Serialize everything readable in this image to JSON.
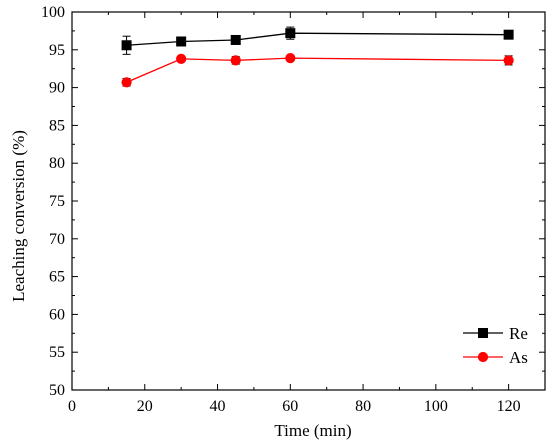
{
  "chart_data": {
    "type": "line",
    "title": "",
    "xlabel": "Time (min)",
    "ylabel": "Leaching conversion (%)",
    "xlim": [
      0,
      130
    ],
    "ylim": [
      50,
      100
    ],
    "xticks": [
      0,
      20,
      40,
      60,
      80,
      100,
      120
    ],
    "yticks": [
      50,
      55,
      60,
      65,
      70,
      75,
      80,
      85,
      90,
      95,
      100
    ],
    "grid": false,
    "legend_position": "bottom-right",
    "series": [
      {
        "name": "Re",
        "color": "#000000",
        "marker": "square",
        "x": [
          15,
          30,
          45,
          60,
          120
        ],
        "y": [
          95.6,
          96.1,
          96.3,
          97.2,
          97.0
        ],
        "error": [
          1.2,
          0.3,
          0.3,
          0.8,
          0.4
        ]
      },
      {
        "name": "As",
        "color": "#ff0000",
        "marker": "circle",
        "x": [
          15,
          30,
          45,
          60,
          120
        ],
        "y": [
          90.7,
          93.8,
          93.6,
          93.9,
          93.6
        ],
        "error": [
          0.5,
          0.3,
          0.5,
          0.3,
          0.6
        ]
      }
    ]
  }
}
